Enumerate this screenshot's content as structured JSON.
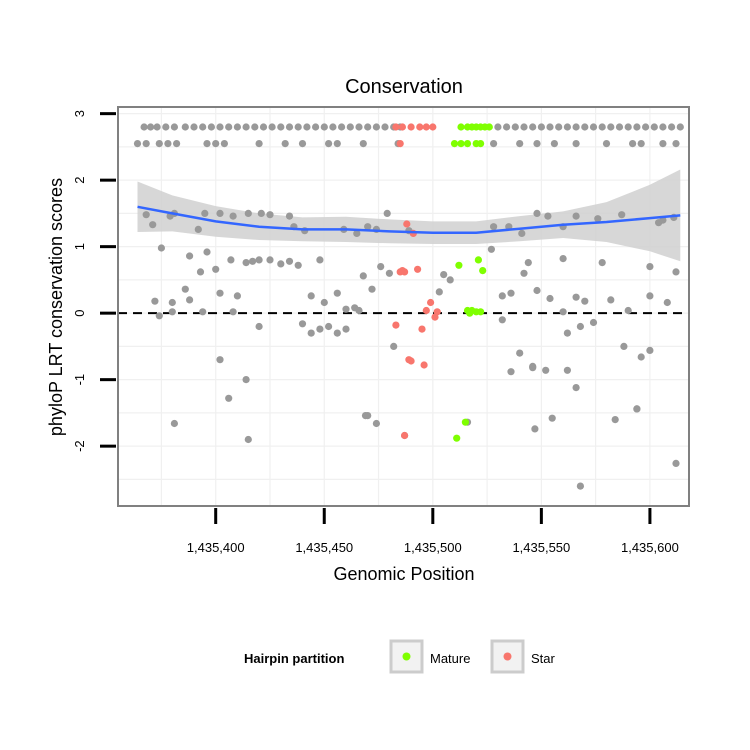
{
  "chart_data": {
    "type": "scatter",
    "title": "Conservation",
    "xlabel": "Genomic Position",
    "ylabel": "phyloP LRT conservation scores",
    "xlim": [
      1435355,
      1435618
    ],
    "ylim": [
      -2.9,
      3.1
    ],
    "x_ticks": [
      1435400,
      1435450,
      1435500,
      1435550,
      1435600
    ],
    "x_tick_labels": [
      "1,435,400",
      "1,435,450",
      "1,435,500",
      "1,435,550",
      "1,435,600"
    ],
    "y_ticks": [
      -2,
      -1,
      0,
      1,
      2,
      3
    ],
    "y_tick_labels": [
      "-2",
      "-1",
      "0",
      "1",
      "2",
      "3"
    ],
    "grid": true,
    "reference_line": {
      "y": 0,
      "style": "dashed"
    },
    "legend": {
      "title": "Hairpin partition",
      "placement": "bottom",
      "entries": [
        {
          "label": "Mature",
          "color": "#7FFF00"
        },
        {
          "label": "Star",
          "color": "#F8766D"
        }
      ]
    },
    "colors": {
      "other": "#999999",
      "Mature": "#7FFF00",
      "Star": "#F8766D",
      "smooth": "#3366FF",
      "band": "#D0D0D0"
    },
    "series": [
      {
        "group": "other",
        "x": [
          1435367,
          1435370,
          1435373,
          1435377,
          1435381,
          1435386,
          1435390,
          1435394,
          1435398,
          1435402,
          1435406,
          1435410,
          1435414,
          1435418,
          1435422,
          1435426,
          1435430,
          1435434,
          1435438,
          1435442,
          1435446,
          1435450,
          1435454,
          1435458,
          1435462,
          1435466,
          1435470,
          1435474,
          1435478,
          1435482,
          1435485,
          1435530,
          1435534,
          1435538,
          1435542,
          1435546,
          1435550,
          1435554,
          1435558,
          1435562,
          1435566,
          1435570,
          1435574,
          1435578,
          1435582,
          1435586,
          1435590,
          1435594,
          1435598,
          1435602,
          1435606,
          1435610,
          1435614,
          1435364,
          1435368,
          1435374,
          1435378,
          1435382,
          1435396,
          1435400,
          1435404,
          1435420,
          1435432,
          1435440,
          1435452,
          1435456,
          1435468,
          1435484,
          1435528,
          1435540,
          1435548,
          1435556,
          1435566,
          1435580,
          1435592,
          1435596,
          1435606,
          1435612,
          1435368,
          1435371,
          1435379,
          1435381,
          1435392,
          1435395,
          1435402,
          1435408,
          1435415,
          1435421,
          1435425,
          1435434,
          1435436,
          1435441,
          1435459,
          1435465,
          1435470,
          1435474,
          1435479,
          1435489,
          1435528,
          1435535,
          1435541,
          1435548,
          1435553,
          1435560,
          1435566,
          1435576,
          1435587,
          1435604,
          1435606,
          1435611,
          1435375,
          1435388,
          1435396,
          1435407,
          1435417,
          1435425,
          1435434,
          1435448,
          1435468,
          1435476,
          1435505,
          1435527,
          1435544,
          1435560,
          1435578,
          1435600,
          1435612,
          1435372,
          1435380,
          1435386,
          1435393,
          1435400,
          1435410,
          1435420,
          1435430,
          1435438,
          1435444,
          1435450,
          1435456,
          1435460,
          1435466,
          1435472,
          1435480,
          1435503,
          1435508,
          1435532,
          1435536,
          1435542,
          1435548,
          1435554,
          1435560,
          1435566,
          1435570,
          1435582,
          1435590,
          1435600,
          1435608,
          1435374,
          1435380,
          1435388,
          1435394,
          1435402,
          1435408,
          1435414,
          1435420,
          1435440,
          1435444,
          1435448,
          1435452,
          1435456,
          1435460,
          1435464,
          1435482,
          1435532,
          1435540,
          1435546,
          1435552,
          1435562,
          1435568,
          1435574,
          1435588,
          1435596,
          1435600,
          1435381,
          1435402,
          1435406,
          1435414,
          1435470,
          1435474,
          1435536,
          1435546,
          1435562,
          1435566,
          1435584,
          1435594,
          1435415,
          1435469,
          1435487,
          1435516,
          1435547,
          1435555,
          1435568,
          1435594,
          1435612
        ],
        "y": [
          2.8,
          2.8,
          2.8,
          2.8,
          2.8,
          2.8,
          2.8,
          2.8,
          2.8,
          2.8,
          2.8,
          2.8,
          2.8,
          2.8,
          2.8,
          2.8,
          2.8,
          2.8,
          2.8,
          2.8,
          2.8,
          2.8,
          2.8,
          2.8,
          2.8,
          2.8,
          2.8,
          2.8,
          2.8,
          2.8,
          2.8,
          2.8,
          2.8,
          2.8,
          2.8,
          2.8,
          2.8,
          2.8,
          2.8,
          2.8,
          2.8,
          2.8,
          2.8,
          2.8,
          2.8,
          2.8,
          2.8,
          2.8,
          2.8,
          2.8,
          2.8,
          2.8,
          2.8,
          2.55,
          2.55,
          2.55,
          2.55,
          2.55,
          2.55,
          2.55,
          2.55,
          2.55,
          2.55,
          2.55,
          2.55,
          2.55,
          2.55,
          2.55,
          2.55,
          2.55,
          2.55,
          2.55,
          2.55,
          2.55,
          2.55,
          2.55,
          2.55,
          2.55,
          1.48,
          1.33,
          1.46,
          1.5,
          1.26,
          1.5,
          1.5,
          1.46,
          1.5,
          1.5,
          1.48,
          1.46,
          1.3,
          1.24,
          1.26,
          1.2,
          1.3,
          1.26,
          1.5,
          1.24,
          1.3,
          1.3,
          1.2,
          1.5,
          1.46,
          1.3,
          1.46,
          1.42,
          1.48,
          1.36,
          1.4,
          1.44,
          0.98,
          0.86,
          0.92,
          0.8,
          0.78,
          0.8,
          0.78,
          0.8,
          0.56,
          0.7,
          0.58,
          0.96,
          0.76,
          0.82,
          0.76,
          0.7,
          0.62,
          0.18,
          0.16,
          0.36,
          0.62,
          0.66,
          0.26,
          0.8,
          0.74,
          0.72,
          0.26,
          0.16,
          0.3,
          0.06,
          0.04,
          0.36,
          0.6,
          0.32,
          0.5,
          0.26,
          0.3,
          0.6,
          0.34,
          0.22,
          0.02,
          0.24,
          0.18,
          0.2,
          0.04,
          0.26,
          0.16,
          -0.04,
          0.02,
          0.2,
          0.02,
          0.3,
          0.02,
          0.76,
          -0.2,
          -0.16,
          -0.3,
          -0.24,
          -0.2,
          -0.3,
          -0.24,
          0.08,
          -0.5,
          -0.1,
          -0.6,
          -0.8,
          -0.86,
          -0.3,
          -0.2,
          -0.14,
          -0.5,
          -0.66,
          -0.56,
          -1.66,
          -0.7,
          -1.28,
          -1.0,
          -1.54,
          -1.66,
          -0.88,
          -0.82,
          -0.86,
          -1.12,
          -1.6,
          -1.44,
          -1.9,
          -1.54,
          -1.84,
          -1.64,
          -1.74,
          -1.58,
          -2.6,
          -1.44,
          -2.26
        ]
      },
      {
        "group": "Star",
        "x": [
          1435483,
          1435486,
          1435490,
          1435494,
          1435497,
          1435500,
          1435485,
          1435488,
          1435491,
          1435486,
          1435493,
          1435499,
          1435502,
          1435497,
          1435501,
          1435483,
          1435489,
          1435495,
          1435485,
          1435487,
          1435490,
          1435496,
          1435487
        ],
        "y": [
          2.8,
          2.8,
          2.8,
          2.8,
          2.8,
          2.8,
          2.55,
          1.34,
          1.2,
          0.64,
          0.66,
          0.16,
          0.02,
          0.04,
          -0.06,
          -0.18,
          -0.7,
          -0.24,
          0.62,
          0.62,
          -0.72,
          -0.78,
          -1.84
        ],
        "note_xy_pairs": true
      },
      {
        "group": "Mature",
        "x": [
          1435513,
          1435516,
          1435518,
          1435520,
          1435522,
          1435524,
          1435526,
          1435510,
          1435513,
          1435516,
          1435520,
          1435522,
          1435512,
          1435521,
          1435523,
          1435516,
          1435518,
          1435522,
          1435520,
          1435515,
          1435511,
          1435517
        ],
        "y": [
          2.8,
          2.8,
          2.8,
          2.8,
          2.8,
          2.8,
          2.8,
          2.55,
          2.55,
          2.55,
          2.55,
          2.55,
          0.72,
          0.8,
          0.64,
          0.04,
          0.04,
          0.02,
          0.02,
          -1.64,
          -1.88,
          0.0
        ]
      }
    ],
    "smooth": {
      "x": [
        1435364,
        1435380,
        1435400,
        1435420,
        1435440,
        1435460,
        1435480,
        1435500,
        1435520,
        1435540,
        1435560,
        1435580,
        1435600,
        1435614
      ],
      "y": [
        1.6,
        1.5,
        1.38,
        1.3,
        1.26,
        1.26,
        1.23,
        1.21,
        1.21,
        1.27,
        1.33,
        1.37,
        1.43,
        1.47
      ],
      "lower": [
        1.22,
        1.23,
        1.15,
        1.1,
        1.08,
        1.07,
        1.05,
        1.04,
        1.04,
        1.08,
        1.13,
        1.07,
        0.93,
        0.78
      ],
      "upper": [
        1.98,
        1.77,
        1.61,
        1.5,
        1.44,
        1.45,
        1.41,
        1.38,
        1.38,
        1.46,
        1.53,
        1.67,
        1.93,
        2.16
      ]
    }
  }
}
